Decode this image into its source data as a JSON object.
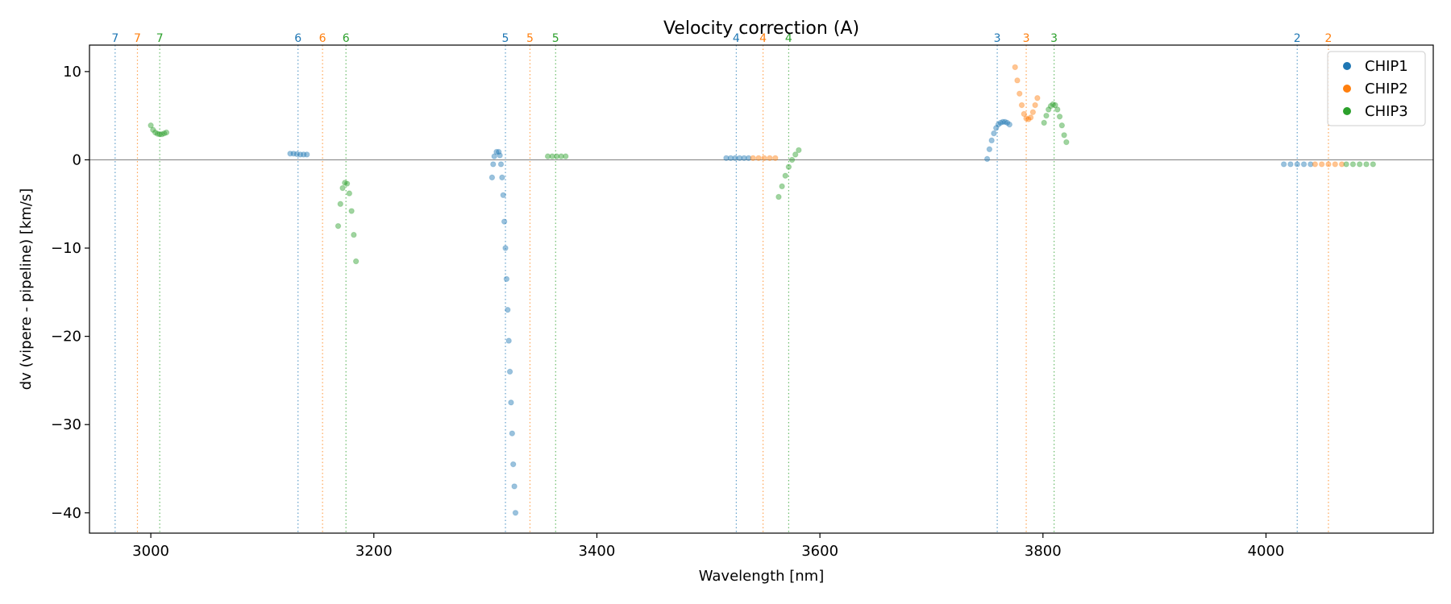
{
  "chart_data": {
    "type": "scatter",
    "title": "Velocity correction (A)",
    "xlabel": "Wavelength [nm]",
    "ylabel": "dv (vipere - pipeline) [km/s]",
    "xlim": [
      2945,
      4150
    ],
    "ylim": [
      -42.3,
      13
    ],
    "xticks": [
      3000,
      3200,
      3400,
      3600,
      3800,
      4000
    ],
    "yticks": [
      10,
      0,
      -10,
      -20,
      -30,
      -40
    ],
    "ytick_labels": [
      "10",
      "0",
      "−10",
      "−20",
      "−30",
      "−40"
    ],
    "zero_line": true,
    "grid": false,
    "legend_position": "top-right",
    "colors": {
      "CHIP1": "#1f77b4",
      "CHIP2": "#ff7f0e",
      "CHIP3": "#2ca02c"
    },
    "order_markers": [
      {
        "x": 2968,
        "label": "7",
        "series": "CHIP1"
      },
      {
        "x": 2988,
        "label": "7",
        "series": "CHIP2"
      },
      {
        "x": 3008,
        "label": "7",
        "series": "CHIP3"
      },
      {
        "x": 3132,
        "label": "6",
        "series": "CHIP1"
      },
      {
        "x": 3154,
        "label": "6",
        "series": "CHIP2"
      },
      {
        "x": 3175,
        "label": "6",
        "series": "CHIP3"
      },
      {
        "x": 3318,
        "label": "5",
        "series": "CHIP1"
      },
      {
        "x": 3340,
        "label": "5",
        "series": "CHIP2"
      },
      {
        "x": 3363,
        "label": "5",
        "series": "CHIP3"
      },
      {
        "x": 3525,
        "label": "4",
        "series": "CHIP1"
      },
      {
        "x": 3549,
        "label": "4",
        "series": "CHIP2"
      },
      {
        "x": 3572,
        "label": "4",
        "series": "CHIP3"
      },
      {
        "x": 3759,
        "label": "3",
        "series": "CHIP1"
      },
      {
        "x": 3785,
        "label": "3",
        "series": "CHIP2"
      },
      {
        "x": 3810,
        "label": "3",
        "series": "CHIP3"
      },
      {
        "x": 4028,
        "label": "2",
        "series": "CHIP1"
      },
      {
        "x": 4056,
        "label": "2",
        "series": "CHIP2"
      }
    ],
    "series": [
      {
        "name": "CHIP1",
        "points": [
          [
            3125,
            0.7
          ],
          [
            3128,
            0.7
          ],
          [
            3131,
            0.65
          ],
          [
            3134,
            0.6
          ],
          [
            3137,
            0.6
          ],
          [
            3140,
            0.6
          ],
          [
            3306,
            -2.0
          ],
          [
            3307,
            -0.5
          ],
          [
            3308,
            0.4
          ],
          [
            3310,
            0.9
          ],
          [
            3312,
            0.9
          ],
          [
            3313,
            0.5
          ],
          [
            3314,
            -0.5
          ],
          [
            3315,
            -2.0
          ],
          [
            3316,
            -4.0
          ],
          [
            3317,
            -7.0
          ],
          [
            3318,
            -10.0
          ],
          [
            3319,
            -13.5
          ],
          [
            3320,
            -17.0
          ],
          [
            3321,
            -20.5
          ],
          [
            3322,
            -24.0
          ],
          [
            3323,
            -27.5
          ],
          [
            3324,
            -31.0
          ],
          [
            3325,
            -34.5
          ],
          [
            3326,
            -37.0
          ],
          [
            3327,
            -40.0
          ],
          [
            3516,
            0.2
          ],
          [
            3520,
            0.2
          ],
          [
            3524,
            0.2
          ],
          [
            3528,
            0.2
          ],
          [
            3532,
            0.2
          ],
          [
            3536,
            0.2
          ],
          [
            3750,
            0.1
          ],
          [
            3752,
            1.2
          ],
          [
            3754,
            2.2
          ],
          [
            3756,
            3.0
          ],
          [
            3758,
            3.6
          ],
          [
            3760,
            4.0
          ],
          [
            3762,
            4.2
          ],
          [
            3764,
            4.3
          ],
          [
            3766,
            4.3
          ],
          [
            3768,
            4.2
          ],
          [
            3770,
            4.0
          ],
          [
            4016,
            -0.5
          ],
          [
            4022,
            -0.5
          ],
          [
            4028,
            -0.5
          ],
          [
            4034,
            -0.5
          ],
          [
            4040,
            -0.5
          ]
        ]
      },
      {
        "name": "CHIP2",
        "points": [
          [
            3540,
            0.2
          ],
          [
            3545,
            0.2
          ],
          [
            3550,
            0.2
          ],
          [
            3555,
            0.2
          ],
          [
            3560,
            0.2
          ],
          [
            3775,
            10.5
          ],
          [
            3777,
            9.0
          ],
          [
            3779,
            7.5
          ],
          [
            3781,
            6.2
          ],
          [
            3783,
            5.2
          ],
          [
            3785,
            4.7
          ],
          [
            3787,
            4.6
          ],
          [
            3789,
            4.8
          ],
          [
            3791,
            5.4
          ],
          [
            3793,
            6.2
          ],
          [
            3795,
            7.0
          ],
          [
            4044,
            -0.5
          ],
          [
            4050,
            -0.5
          ],
          [
            4056,
            -0.5
          ],
          [
            4062,
            -0.5
          ],
          [
            4068,
            -0.5
          ]
        ]
      },
      {
        "name": "CHIP3",
        "points": [
          [
            3000,
            3.9
          ],
          [
            3002,
            3.4
          ],
          [
            3004,
            3.1
          ],
          [
            3006,
            2.95
          ],
          [
            3008,
            2.9
          ],
          [
            3010,
            2.9
          ],
          [
            3012,
            3.0
          ],
          [
            3014,
            3.1
          ],
          [
            3168,
            -7.5
          ],
          [
            3170,
            -5.0
          ],
          [
            3172,
            -3.2
          ],
          [
            3174,
            -2.6
          ],
          [
            3176,
            -2.7
          ],
          [
            3178,
            -3.8
          ],
          [
            3180,
            -5.8
          ],
          [
            3182,
            -8.5
          ],
          [
            3184,
            -11.5
          ],
          [
            3356,
            0.4
          ],
          [
            3360,
            0.4
          ],
          [
            3364,
            0.4
          ],
          [
            3368,
            0.4
          ],
          [
            3372,
            0.4
          ],
          [
            3563,
            -4.2
          ],
          [
            3566,
            -3.0
          ],
          [
            3569,
            -1.8
          ],
          [
            3572,
            -0.8
          ],
          [
            3575,
            0.0
          ],
          [
            3578,
            0.6
          ],
          [
            3581,
            1.1
          ],
          [
            3801,
            4.2
          ],
          [
            3803,
            5.0
          ],
          [
            3805,
            5.7
          ],
          [
            3807,
            6.1
          ],
          [
            3809,
            6.3
          ],
          [
            3811,
            6.2
          ],
          [
            3813,
            5.7
          ],
          [
            3815,
            4.9
          ],
          [
            3817,
            3.9
          ],
          [
            3819,
            2.8
          ],
          [
            3821,
            2.0
          ],
          [
            4072,
            -0.5
          ],
          [
            4078,
            -0.5
          ],
          [
            4084,
            -0.5
          ],
          [
            4090,
            -0.5
          ],
          [
            4096,
            -0.5
          ]
        ]
      }
    ]
  }
}
